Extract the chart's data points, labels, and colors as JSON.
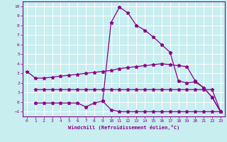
{
  "xlabel": "Windchill (Refroidissement éolien,°C)",
  "background_color": "#c8eef0",
  "grid_color": "#ffffff",
  "line_color": "#880088",
  "xlim": [
    -0.5,
    23.5
  ],
  "ylim": [
    -1.5,
    10.5
  ],
  "xticks": [
    0,
    1,
    2,
    3,
    4,
    5,
    6,
    7,
    8,
    9,
    10,
    11,
    12,
    13,
    14,
    15,
    16,
    17,
    18,
    19,
    20,
    21,
    22,
    23
  ],
  "yticks": [
    -1,
    0,
    1,
    2,
    3,
    4,
    5,
    6,
    7,
    8,
    9,
    10
  ],
  "series": [
    {
      "x": [
        0,
        1,
        2,
        3,
        4,
        5,
        6,
        7,
        8,
        9,
        10,
        11,
        12,
        13,
        14,
        15,
        16,
        17,
        18,
        19,
        20,
        21,
        22,
        23
      ],
      "y": [
        null,
        null,
        null,
        null,
        null,
        null,
        null,
        null,
        null,
        null,
        8.3,
        9.9,
        9.3,
        8.0,
        7.5,
        6.8,
        6.0,
        5.2,
        null,
        null,
        null,
        null,
        null,
        null
      ]
    },
    {
      "x": [
        0,
        1,
        2,
        3,
        4,
        5,
        6,
        7,
        8,
        9,
        10,
        11,
        12,
        13,
        14,
        15,
        16,
        17,
        18,
        19,
        20,
        21,
        22,
        23
      ],
      "y": [
        3.2,
        2.5,
        2.5,
        2.6,
        2.7,
        2.8,
        2.9,
        3.0,
        3.1,
        3.2,
        3.3,
        3.5,
        3.6,
        3.7,
        3.8,
        3.9,
        4.0,
        3.9,
        3.8,
        3.7,
        2.2,
        1.5,
        0.5,
        -1.0
      ]
    },
    {
      "x": [
        1,
        2,
        3,
        4,
        5,
        6,
        7,
        8,
        9,
        10,
        11,
        12,
        13,
        14,
        15,
        16,
        17,
        18,
        19,
        20,
        21,
        22,
        23
      ],
      "y": [
        1.3,
        1.3,
        1.3,
        1.3,
        1.3,
        1.3,
        1.3,
        1.3,
        1.3,
        1.3,
        1.3,
        1.3,
        1.3,
        1.3,
        1.3,
        1.3,
        1.3,
        1.3,
        1.3,
        1.3,
        1.3,
        1.3,
        -1.0
      ]
    },
    {
      "x": [
        1,
        2,
        3,
        4,
        5,
        6,
        7,
        8,
        9,
        10,
        11,
        12,
        13,
        14,
        15,
        16,
        17,
        18,
        19,
        20,
        21,
        22,
        23
      ],
      "y": [
        -0.1,
        -0.1,
        -0.1,
        -0.1,
        -0.1,
        -0.1,
        -0.5,
        -0.1,
        0.1,
        -0.8,
        -1.0,
        -1.0,
        -1.0,
        -1.0,
        -1.0,
        -1.0,
        -1.0,
        -1.0,
        -1.0,
        -1.0,
        -1.0,
        -1.0,
        -1.0
      ]
    }
  ],
  "combined_series": {
    "x": [
      9,
      10,
      11,
      12,
      13,
      14,
      15,
      16,
      17,
      18,
      19,
      20,
      21,
      22,
      23
    ],
    "y": [
      0.1,
      8.3,
      9.9,
      9.3,
      8.0,
      7.5,
      6.8,
      6.0,
      5.2,
      2.2,
      2.0,
      2.1,
      1.5,
      0.5,
      -1.0
    ]
  }
}
